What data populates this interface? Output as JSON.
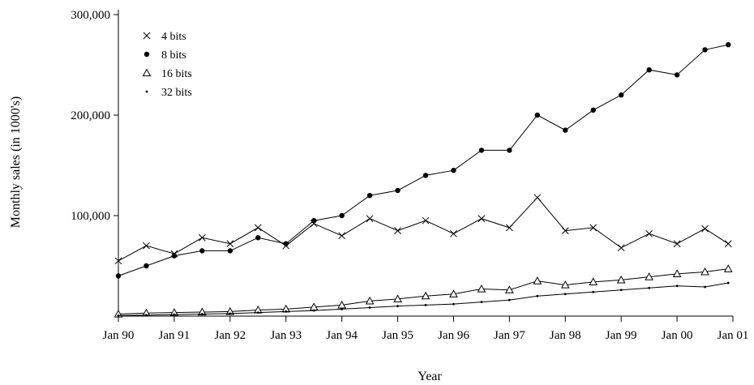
{
  "chart_data": {
    "type": "line",
    "title": "",
    "xlabel": "Year",
    "ylabel": "Monthly sales (in 1000's)",
    "xlim": [
      "1990-01",
      "2000-12"
    ],
    "ylim": [
      0,
      300000
    ],
    "grid": false,
    "legend_position": "top-left",
    "x_ticks": [
      "Jan 90",
      "Jan 91",
      "Jan 92",
      "Jan 93",
      "Jan 94",
      "Jan 95",
      "Jan 96",
      "Jan 97",
      "Jan 98",
      "Jan 99",
      "Jan 00",
      "Jan 01"
    ],
    "y_ticks": [
      "100,000",
      "200,000",
      "300,000"
    ],
    "x": [
      "1990-01",
      "1990-07",
      "1991-01",
      "1991-07",
      "1992-01",
      "1992-07",
      "1993-01",
      "1993-07",
      "1994-01",
      "1994-07",
      "1995-01",
      "1995-07",
      "1996-01",
      "1996-07",
      "1997-01",
      "1997-07",
      "1998-01",
      "1998-07",
      "1999-01",
      "1999-07",
      "2000-01",
      "2000-07",
      "2000-12"
    ],
    "series": [
      {
        "name": "4 bits",
        "marker": "x",
        "values": [
          55000,
          70000,
          62000,
          78000,
          72000,
          88000,
          70000,
          92000,
          80000,
          97000,
          85000,
          95000,
          82000,
          97000,
          88000,
          118000,
          85000,
          88000,
          68000,
          82000,
          72000,
          87000,
          72000
        ]
      },
      {
        "name": "8 bits",
        "marker": "filled-circle",
        "values": [
          40000,
          50000,
          60000,
          65000,
          65000,
          78000,
          72000,
          95000,
          100000,
          120000,
          125000,
          140000,
          145000,
          165000,
          165000,
          200000,
          185000,
          205000,
          220000,
          245000,
          240000,
          265000,
          270000
        ]
      },
      {
        "name": "16 bits",
        "marker": "triangle",
        "values": [
          2000,
          3000,
          3500,
          4000,
          4500,
          6000,
          7000,
          9000,
          11000,
          15000,
          17000,
          20000,
          22000,
          27000,
          26000,
          35000,
          31000,
          34000,
          36000,
          39000,
          42000,
          44000,
          47000
        ]
      },
      {
        "name": "32 bits",
        "marker": "dot",
        "values": [
          500,
          1000,
          1500,
          2000,
          2500,
          3500,
          4500,
          5500,
          7000,
          8500,
          10000,
          11000,
          12000,
          14000,
          16000,
          20000,
          22000,
          24000,
          26000,
          28000,
          30000,
          29000,
          33000
        ]
      }
    ]
  }
}
